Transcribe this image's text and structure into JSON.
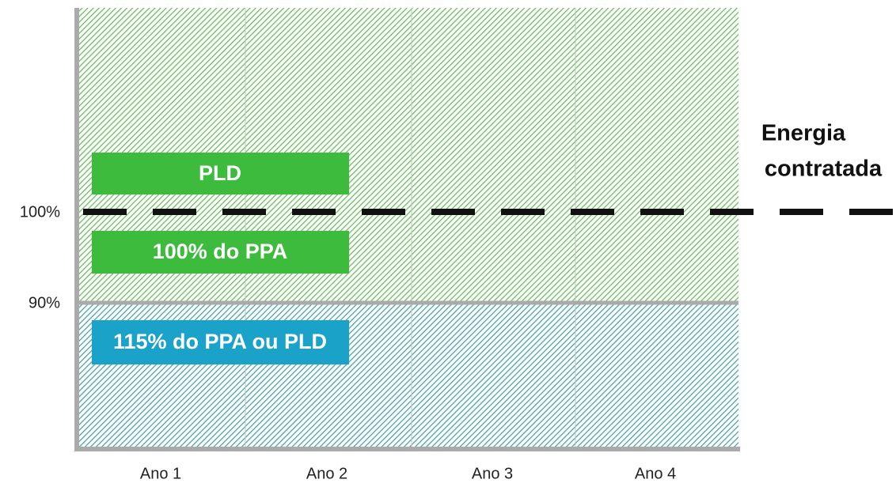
{
  "y_labels": [
    "100%",
    "90%"
  ],
  "x_labels": [
    "Ano 1",
    "Ano 2",
    "Ano 3",
    "Ano 4"
  ],
  "boxes": [
    "PLD",
    "100% do PPA",
    "115% do PPA ou PLD"
  ],
  "line_label": [
    "Energia",
    "contratada"
  ]
}
